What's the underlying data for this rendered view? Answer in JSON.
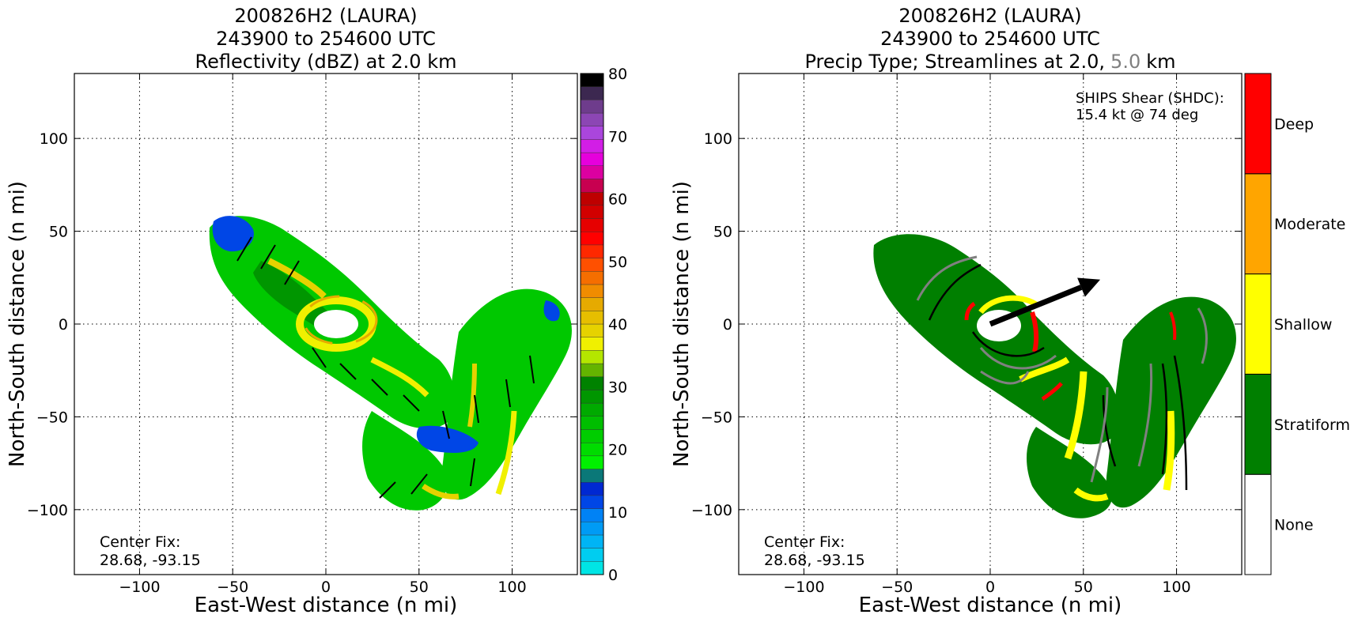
{
  "chart_data": [
    {
      "type": "other",
      "title_lines": [
        "200826H2 (LAURA)",
        "243900 to 254600 UTC",
        "Reflectivity (dBZ) at 2.0 km"
      ],
      "xlabel": "East-West distance (n mi)",
      "ylabel": "North-South distance (n mi)",
      "xlim": [
        -135,
        135
      ],
      "ylim": [
        -135,
        135
      ],
      "xticks": [
        -100,
        -50,
        0,
        50,
        100
      ],
      "yticks": [
        -100,
        -50,
        0,
        50,
        100
      ],
      "xtick_labels": [
        "−100",
        "−50",
        "0",
        "50",
        "100"
      ],
      "ytick_labels": [
        "−100",
        "−50",
        "0",
        "50",
        "100"
      ],
      "grid": true,
      "annotation": [
        "Center Fix:",
        "28.68, -93.15"
      ],
      "colorbar": {
        "range": [
          0,
          80
        ],
        "step": 2.5,
        "ticks": [
          0,
          10,
          20,
          30,
          40,
          50,
          60,
          70,
          80
        ],
        "tick_labels": [
          "0",
          "10",
          "20",
          "30",
          "40",
          "50",
          "60",
          "70",
          "80"
        ],
        "colors": [
          "#00e5e5",
          "#00cdf0",
          "#00b4f5",
          "#009bf5",
          "#0082f5",
          "#0046e6",
          "#0028d2",
          "#0a7878",
          "#00f000",
          "#00dc00",
          "#00cd00",
          "#00be00",
          "#00aa00",
          "#009600",
          "#008200",
          "#64b400",
          "#b4e600",
          "#f0f000",
          "#e6d200",
          "#e6be00",
          "#e6aa00",
          "#f08c00",
          "#f56e00",
          "#ff5000",
          "#ff2800",
          "#ff0000",
          "#e60000",
          "#d20000",
          "#be0000",
          "#c80050",
          "#dc00a0",
          "#e600dc",
          "#d21ee6",
          "#aa46dc",
          "#8c46b4",
          "#6e3c8c",
          "#3c2850",
          "#000000"
        ]
      }
    },
    {
      "type": "other",
      "title_lines": [
        "200826H2 (LAURA)",
        "243900 to 254600 UTC"
      ],
      "title_line3": {
        "prefix": "Precip Type; Streamlines at 2.0,",
        "highlight": "5.0",
        "suffix": "km",
        "highlight_color": "#808080"
      },
      "xlabel": "East-West distance (n mi)",
      "ylabel": "North-South distance (n mi)",
      "xlim": [
        -135,
        135
      ],
      "ylim": [
        -135,
        135
      ],
      "xticks": [
        -100,
        -50,
        0,
        50,
        100
      ],
      "yticks": [
        -100,
        -50,
        0,
        50,
        100
      ],
      "xtick_labels": [
        "−100",
        "−50",
        "0",
        "50",
        "100"
      ],
      "ytick_labels": [
        "−100",
        "−50",
        "0",
        "50",
        "100"
      ],
      "grid": true,
      "annotation": [
        "Center Fix:",
        "28.68, -93.15"
      ],
      "shear_text": [
        "SHIPS Shear (SHDC):",
        "15.4 kt @ 74 deg"
      ],
      "shear": {
        "speed_kt": 15.4,
        "direction_deg": 74
      },
      "categories": [
        {
          "name": "None",
          "color": "#ffffff"
        },
        {
          "name": "Stratiform",
          "color": "#007f00"
        },
        {
          "name": "Shallow",
          "color": "#ffff00"
        },
        {
          "name": "Moderate",
          "color": "#ffa500"
        },
        {
          "name": "Deep",
          "color": "#ff0000"
        }
      ]
    }
  ]
}
